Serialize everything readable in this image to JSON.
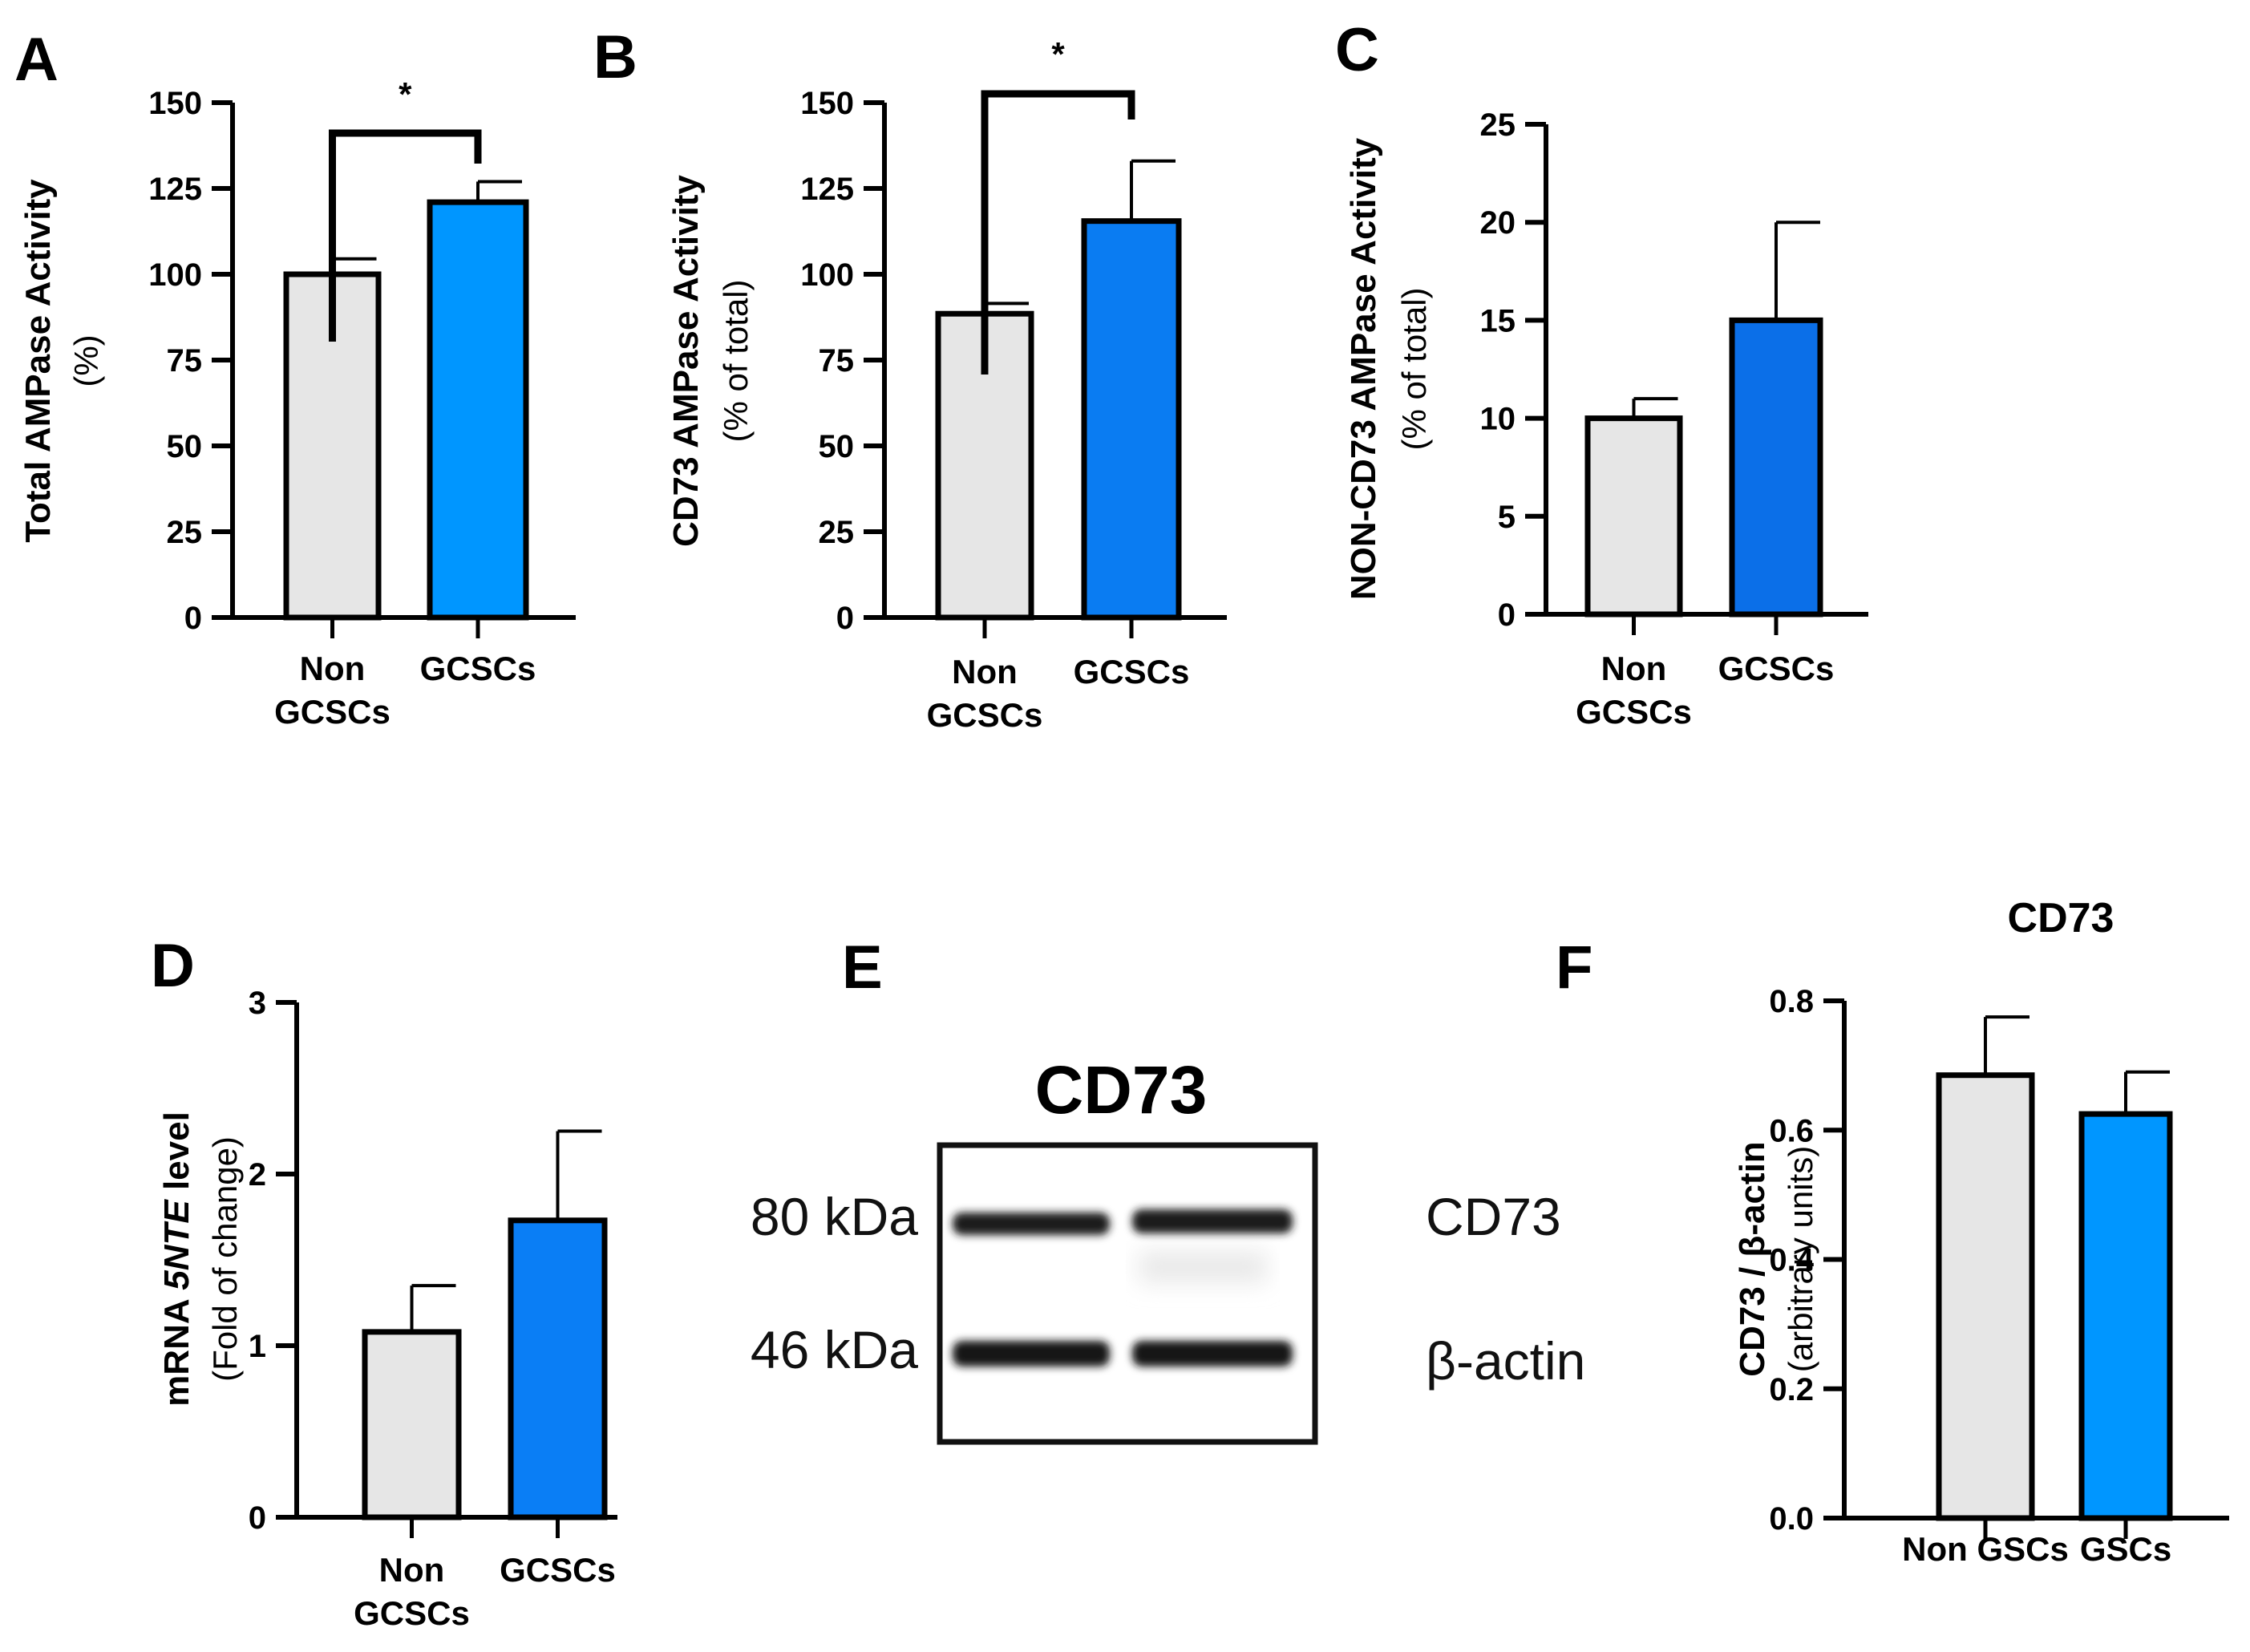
{
  "colors": {
    "grey_bar": "#e6e6e6",
    "blue_bar_a": "#0096ff",
    "blue_bar_b": "#0a7cf2",
    "blue_bar_c": "#0b6fe8",
    "blue_bar_d": "#0a7ef5",
    "blue_bar_f": "#0096ff",
    "axis": "#000000"
  },
  "chart_data": [
    {
      "panel": "A",
      "type": "bar",
      "categories": [
        "Non\nGCSCs",
        "GCSCs"
      ],
      "values": [
        100,
        121
      ],
      "errors": [
        4.5,
        6
      ],
      "ylim": [
        0,
        150
      ],
      "yticks": [
        0,
        25,
        50,
        75,
        100,
        125,
        150
      ],
      "ylabel": "Total AMPase Activity",
      "ylabel_sub": "(%)",
      "significance": "*"
    },
    {
      "panel": "B",
      "type": "bar",
      "categories": [
        "Non\nGCSCs",
        "GCSCs"
      ],
      "values": [
        88.5,
        115.5
      ],
      "errors": [
        3,
        17.5
      ],
      "ylim": [
        0,
        150
      ],
      "yticks": [
        0,
        25,
        50,
        75,
        100,
        125,
        150
      ],
      "ylabel": "CD73 AMPase Activity",
      "ylabel_sub": "(% of total)",
      "significance": "*"
    },
    {
      "panel": "C",
      "type": "bar",
      "categories": [
        "Non\nGCSCs",
        "GCSCs"
      ],
      "values": [
        10,
        15
      ],
      "errors": [
        1,
        5
      ],
      "ylim": [
        0,
        25
      ],
      "yticks": [
        0,
        5,
        10,
        15,
        20,
        25
      ],
      "ylabel": "NON-CD73 AMPase Activity",
      "ylabel_sub": "(% of total)",
      "significance": ""
    },
    {
      "panel": "D",
      "type": "bar",
      "categories": [
        "Non\nGCSCs",
        "GCSCs"
      ],
      "values": [
        1.08,
        1.73
      ],
      "errors": [
        0.27,
        0.52
      ],
      "ylim": [
        0,
        3
      ],
      "yticks": [
        0,
        1,
        2,
        3
      ],
      "ylabel_pre": "mRNA ",
      "ylabel_italic": "5NTE",
      "ylabel_post": " level",
      "ylabel_sub": "(Fold of change)",
      "significance": ""
    },
    {
      "panel": "F",
      "type": "bar",
      "title": "CD73",
      "categories": [
        "Non GSCs",
        "GSCs"
      ],
      "values": [
        0.685,
        0.625
      ],
      "errors": [
        0.09,
        0.065
      ],
      "ylim": [
        0,
        0.8
      ],
      "yticks": [
        "0.0",
        "0.2",
        "0.4",
        "0.6",
        "0.8"
      ],
      "ylabel": "CD73 / β-actin",
      "ylabel_sub": "(arbitrary units)",
      "significance": ""
    }
  ],
  "blot": {
    "panel": "E",
    "title": "CD73",
    "markers": [
      "80 kDa",
      "46 kDa"
    ],
    "bands": [
      "CD73",
      "β-actin"
    ]
  }
}
